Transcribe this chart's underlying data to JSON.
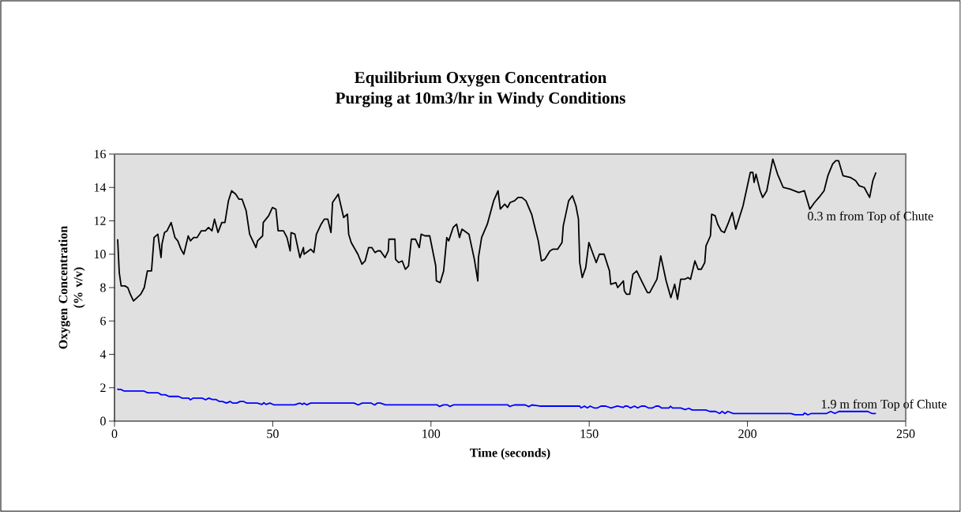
{
  "chart_data": {
    "type": "line",
    "title": "Equilibrium Oxygen Concentration",
    "subtitle": "Purging at 10m3/hr in Windy Conditions",
    "xlabel": "Time (seconds)",
    "ylabel": "Oxygen Concentration (% v/v)",
    "xlim": [
      0,
      250
    ],
    "ylim": [
      0,
      16
    ],
    "xticks": [
      0,
      50,
      100,
      150,
      200,
      250
    ],
    "yticks": [
      0,
      2,
      4,
      6,
      8,
      10,
      12,
      14,
      16
    ],
    "marker": "none",
    "series": [
      {
        "name": "0.3 m from Top of Chute",
        "color": "#000000",
        "x": [
          1,
          1.5,
          2.1,
          3.3,
          4.2,
          5,
          6,
          8.3,
          9.4,
          10.4,
          11.7,
          12.5,
          13.7,
          14.7,
          15,
          15.8,
          16.6,
          17.9,
          19.1,
          20,
          21,
          21.9,
          23.3,
          24,
          25,
          26.1,
          27.4,
          28.7,
          29.7,
          30.8,
          31.6,
          32.7,
          33.9,
          34.9,
          36,
          37,
          38.3,
          39.3,
          40.3,
          41.6,
          42.7,
          43.7,
          44.7,
          45.2,
          46.8,
          47,
          48.7,
          49.9,
          51,
          51.7,
          53.4,
          54.5,
          55.5,
          55.8,
          57,
          58.6,
          59.7,
          59.9,
          62,
          63,
          63.8,
          65.3,
          66.3,
          67.4,
          68.4,
          68.9,
          70.7,
          72.4,
          73.6,
          74,
          74.8,
          76.9,
          78.2,
          79.2,
          80.3,
          81.3,
          82.3,
          83.2,
          84,
          85.5,
          86.5,
          86.7,
          88.6,
          88.8,
          89.8,
          90.9,
          91.9,
          92.9,
          93.8,
          95.1,
          96.3,
          96.9,
          98.1,
          99.6,
          101.5,
          101.7,
          102.9,
          104,
          105,
          105.6,
          107,
          108.1,
          109,
          109.8,
          112,
          113.7,
          114.8,
          115,
          116,
          117.8,
          119.8,
          121.2,
          121.9,
          123.3,
          124.2,
          125,
          126.4,
          127.5,
          128.7,
          130,
          131.8,
          133.1,
          133.9,
          134.9,
          136,
          137.6,
          138.5,
          140,
          141.4,
          141.8,
          143.5,
          144.7,
          145.8,
          146.6,
          147,
          147.8,
          148.9,
          149.9,
          152.2,
          153.2,
          154.7,
          156.4,
          156.8,
          158.4,
          159,
          160.8,
          161.1,
          161.8,
          162.8,
          163.8,
          165,
          166.8,
          168.4,
          169.1,
          171.4,
          172.6,
          174.3,
          175.8,
          177,
          177.9,
          178.9,
          180.2,
          181.2,
          182,
          183.4,
          184.4,
          185.4,
          186.5,
          186.9,
          188.3,
          188.7,
          189.8,
          190.6,
          191.7,
          192.7,
          194,
          195.2,
          196.3,
          198.6,
          200.9,
          201.7,
          202.1,
          202.7,
          204,
          204.8,
          206.1,
          208,
          209.5,
          211.3,
          213.5,
          216.2,
          218,
          219.7,
          221.2,
          223,
          224.2,
          225.4,
          226.9,
          227.9,
          228.8,
          230.2,
          232.5,
          234.2,
          235.3,
          236.9,
          238.6,
          239.6,
          240.6
        ],
        "values": [
          10.9,
          8.9,
          8.1,
          8.1,
          8.0,
          7.6,
          7.2,
          7.6,
          8.0,
          9.0,
          9.0,
          11.0,
          11.2,
          9.8,
          10.6,
          11.3,
          11.4,
          11.9,
          11.0,
          10.8,
          10.3,
          10.0,
          11.1,
          10.8,
          11.0,
          11.0,
          11.4,
          11.4,
          11.6,
          11.4,
          12.1,
          11.3,
          11.9,
          11.9,
          13.2,
          13.8,
          13.6,
          13.3,
          13.3,
          12.6,
          11.2,
          10.8,
          10.4,
          10.8,
          11.1,
          11.9,
          12.3,
          12.8,
          12.7,
          11.4,
          11.4,
          11.0,
          10.2,
          11.3,
          11.2,
          9.8,
          10.4,
          10.0,
          10.3,
          10.1,
          11.2,
          11.8,
          12.1,
          12.1,
          11.3,
          13.1,
          13.6,
          12.2,
          12.4,
          11.2,
          10.7,
          10.0,
          9.4,
          9.6,
          10.4,
          10.4,
          10.1,
          10.2,
          10.2,
          9.8,
          10.2,
          10.9,
          10.9,
          9.7,
          9.5,
          9.6,
          9.1,
          9.3,
          10.9,
          10.9,
          10.4,
          11.2,
          11.1,
          11.1,
          9.3,
          8.4,
          8.3,
          9.0,
          11.0,
          10.8,
          11.6,
          11.8,
          11.0,
          11.5,
          11.2,
          9.7,
          8.4,
          9.8,
          11.0,
          11.8,
          13.2,
          13.8,
          12.7,
          13.0,
          12.8,
          13.1,
          13.2,
          13.4,
          13.4,
          13.2,
          12.4,
          11.4,
          10.8,
          9.6,
          9.7,
          10.2,
          10.3,
          10.3,
          10.7,
          11.7,
          13.2,
          13.5,
          12.9,
          12.1,
          9.5,
          8.6,
          9.2,
          10.7,
          9.5,
          10.0,
          10.0,
          9.0,
          8.2,
          8.3,
          8.0,
          8.4,
          7.8,
          7.6,
          7.6,
          8.8,
          9.0,
          8.3,
          7.7,
          7.7,
          8.5,
          9.9,
          8.4,
          7.4,
          8.2,
          7.3,
          8.5,
          8.5,
          8.6,
          8.5,
          9.6,
          9.1,
          9.1,
          9.5,
          10.5,
          11.1,
          12.4,
          12.3,
          11.8,
          11.4,
          11.3,
          11.9,
          12.5,
          11.5,
          12.9,
          14.9,
          14.9,
          14.3,
          14.8,
          13.8,
          13.4,
          13.8,
          15.7,
          14.8,
          14.0,
          13.9,
          13.7,
          13.8,
          12.7,
          13.1,
          13.5,
          13.8,
          14.7,
          15.4,
          15.6,
          15.6,
          14.7,
          14.6,
          14.4,
          14.1,
          14.0,
          13.4,
          14.4,
          14.9
        ]
      },
      {
        "name": "1.9 m from Top of Chute",
        "color": "#0000ff",
        "x": [
          1,
          1.1,
          2,
          3.1,
          9.3,
          10.5,
          13.7,
          14.8,
          16.1,
          17.2,
          20.2,
          21.4,
          23.4,
          24,
          24.9,
          27.7,
          28.8,
          29.8,
          30.9,
          32,
          33.1,
          34.1,
          35.4,
          36.5,
          37.4,
          38.6,
          39.7,
          40.8,
          41.8,
          45.1,
          46.6,
          47.2,
          47.9,
          49.1,
          50.3,
          56.9,
          58.6,
          59.4,
          59.9,
          60.7,
          62,
          75.7,
          77,
          78.3,
          81.1,
          82.2,
          83,
          84,
          85.6,
          101.9,
          102.7,
          104,
          105.1,
          106,
          107.2,
          124.2,
          124.9,
          126.3,
          129.8,
          130.9,
          131.9,
          133.5,
          134.4,
          147,
          147.4,
          148.5,
          149.4,
          150.3,
          151.5,
          152.6,
          153.7,
          155.2,
          156.9,
          158.9,
          160.7,
          161.3,
          162.1,
          163,
          164.3,
          165.3,
          166.5,
          167.6,
          168.7,
          170,
          171.1,
          172,
          172.8,
          175.2,
          175.7,
          176.3,
          178.9,
          180.3,
          181.5,
          182.5,
          186.8,
          188.1,
          189.9,
          191.2,
          192,
          192.9,
          193.8,
          195.5,
          213.7,
          215,
          217.6,
          218,
          219.1,
          220.2,
          225,
          226.3,
          227.6,
          228.9,
          238,
          239.3,
          240.6
        ],
        "values": [
          1.95,
          1.9,
          1.9,
          1.8,
          1.8,
          1.7,
          1.7,
          1.58,
          1.58,
          1.48,
          1.48,
          1.38,
          1.38,
          1.28,
          1.38,
          1.38,
          1.28,
          1.38,
          1.3,
          1.3,
          1.18,
          1.18,
          1.08,
          1.18,
          1.08,
          1.08,
          1.18,
          1.18,
          1.08,
          1.08,
          1.0,
          1.1,
          1.0,
          1.08,
          0.98,
          0.98,
          1.08,
          1.0,
          1.08,
          0.98,
          1.08,
          1.08,
          0.97,
          1.08,
          1.08,
          0.97,
          1.08,
          1.08,
          0.98,
          0.98,
          0.88,
          0.98,
          0.98,
          0.88,
          0.98,
          0.98,
          0.88,
          0.97,
          0.97,
          0.87,
          0.97,
          0.93,
          0.9,
          0.9,
          0.79,
          0.9,
          0.79,
          0.9,
          0.79,
          0.79,
          0.9,
          0.9,
          0.79,
          0.9,
          0.82,
          0.9,
          0.9,
          0.79,
          0.9,
          0.79,
          0.9,
          0.9,
          0.79,
          0.79,
          0.9,
          0.9,
          0.79,
          0.79,
          0.89,
          0.79,
          0.79,
          0.69,
          0.77,
          0.67,
          0.67,
          0.58,
          0.58,
          0.46,
          0.58,
          0.46,
          0.58,
          0.46,
          0.46,
          0.38,
          0.38,
          0.49,
          0.38,
          0.46,
          0.46,
          0.58,
          0.46,
          0.58,
          0.58,
          0.46,
          0.46
        ]
      }
    ]
  }
}
